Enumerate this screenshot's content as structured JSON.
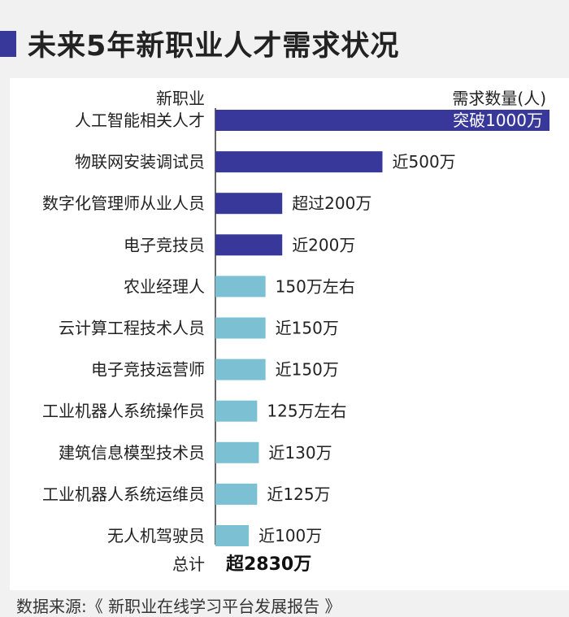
{
  "title": "未来5年新职业人才需求状况",
  "colors": {
    "accent_dark": "#38389a",
    "accent_light": "#7cc0d4",
    "label_on_bar": "#ffffff"
  },
  "chart_data": {
    "type": "bar",
    "orientation": "horizontal",
    "category_header": "新职业",
    "value_header": "需求数量(人)",
    "categories": [
      "人工智能相关人才",
      "物联网安装调试员",
      "数字化管理师从业人员",
      "电子竞技员",
      "农业经理人",
      "云计算工程技术人员",
      "电子竞技运营师",
      "工业机器人系统操作员",
      "建筑信息模型技术员",
      "工业机器人系统运维员",
      "无人机驾驶员"
    ],
    "values": [
      1000,
      500,
      200,
      200,
      150,
      150,
      150,
      125,
      130,
      125,
      100
    ],
    "unit": "万",
    "data_labels": [
      "突破1000万",
      "近500万",
      "超过200万",
      "近200万",
      "150万左右",
      "近150万",
      "近150万",
      "125万左右",
      "近130万",
      "近125万",
      "近100万"
    ],
    "highlight_top_n": 4,
    "total_label": "总计",
    "total_value": "超2830万",
    "grid": false
  },
  "source": "数据来源:《 新职业在线学习平台发展报告 》"
}
